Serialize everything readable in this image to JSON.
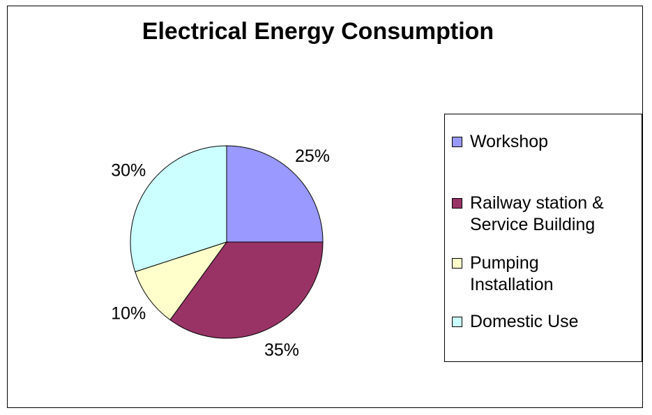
{
  "chart_data": {
    "type": "pie",
    "title": "Electrical Energy Consumption",
    "categories": [
      "Workshop",
      "Railway station & Service Building",
      "Pumping Installation",
      "Domestic Use"
    ],
    "values": [
      25,
      35,
      10,
      30
    ],
    "value_labels": [
      "25%",
      "35%",
      "10%",
      "30%"
    ],
    "colors": [
      "#9999ff",
      "#993366",
      "#ffffcc",
      "#ccffff"
    ],
    "legend_placement": "right"
  },
  "legend": {
    "items": [
      {
        "label": "Workshop",
        "color": "#9999ff"
      },
      {
        "label": "Railway station & Service Building",
        "color": "#993366"
      },
      {
        "label": "Pumping Installation",
        "color": "#ffffcc"
      },
      {
        "label": "Domestic Use",
        "color": "#ccffff"
      }
    ]
  }
}
